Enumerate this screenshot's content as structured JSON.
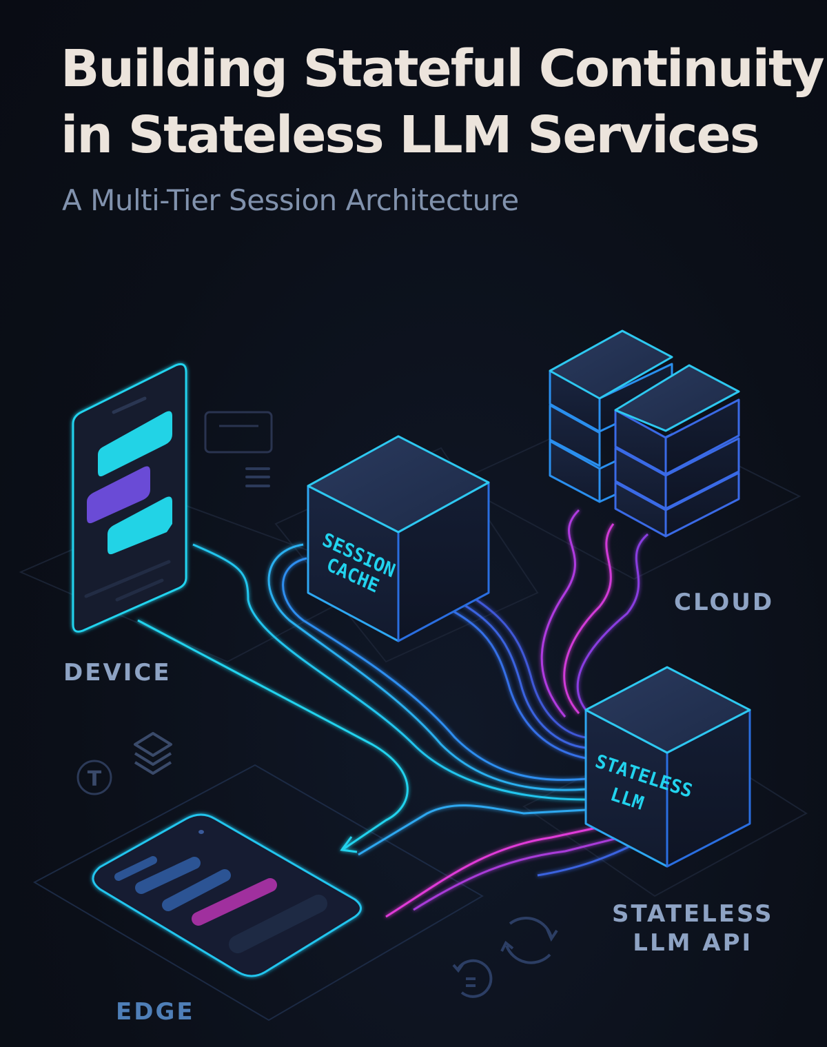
{
  "header": {
    "title_line1": "Building Stateful Continuity",
    "title_line2": "in Stateless LLM Services",
    "subtitle": "A Multi-Tier Session Architecture"
  },
  "labels": {
    "device": "DEVICE",
    "edge": "EDGE",
    "cloud": "CLOUD",
    "api_line1": "STATELESS",
    "api_line2": "LLM API"
  },
  "nodes": {
    "session_cache": {
      "line1": "SESSION",
      "line2": "CACHE"
    },
    "stateless_llm": {
      "line1": "STATELESS",
      "line2": "LLM"
    }
  },
  "icons": {
    "token_letter": "T",
    "names": [
      "phone-icon",
      "chat-bubble-icon",
      "menu-lines-icon",
      "layers-icon",
      "token-icon",
      "refresh-icon",
      "history-icon",
      "server-stack-icon"
    ]
  },
  "colors": {
    "background": "#0b0f18",
    "cyan": "#22d3ee",
    "blue": "#3b6fe0",
    "magenta": "#e03ad8",
    "purple": "#6a4bd6",
    "title": "#ece4dc",
    "label": "#8ea3c4"
  }
}
